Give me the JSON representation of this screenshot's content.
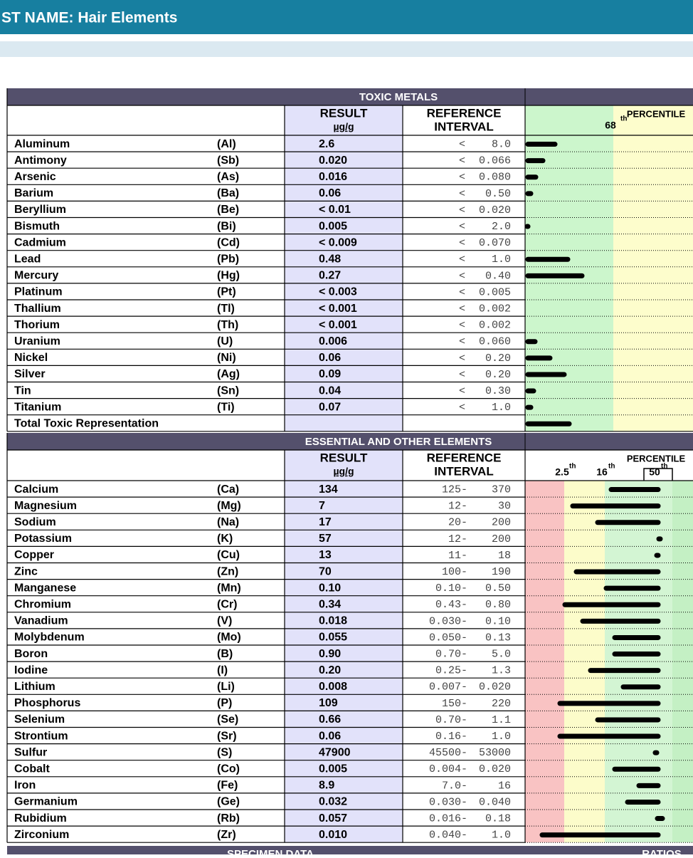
{
  "header": {
    "title": "ST NAME: Hair Elements"
  },
  "toxic": {
    "title": "TOXIC METALS",
    "result": "RESULT",
    "unit": "µg/g",
    "reference": "REFERENCE",
    "interval": "INTERVAL",
    "percentile": "PERCENTILE",
    "marker": "68",
    "marker_sup": "th",
    "rows": [
      [
        "Aluminum",
        "(Al)",
        "2.6",
        [
          "<",
          "8.0"
        ]
      ],
      [
        "Antimony",
        "(Sb)",
        "0.020",
        [
          "<",
          "0.066"
        ]
      ],
      [
        "Arsenic",
        "(As)",
        "0.016",
        [
          "<",
          "0.080"
        ]
      ],
      [
        "Barium",
        "(Ba)",
        "0.06",
        [
          "<",
          "0.50"
        ]
      ],
      [
        "Beryllium",
        "(Be)",
        "< 0.01",
        [
          "<",
          "0.020"
        ]
      ],
      [
        "Bismuth",
        "(Bi)",
        "0.005",
        [
          "<",
          "2.0"
        ]
      ],
      [
        "Cadmium",
        "(Cd)",
        "< 0.009",
        [
          "<",
          "0.070"
        ]
      ],
      [
        "Lead",
        "(Pb)",
        "0.48",
        [
          "<",
          "1.0"
        ]
      ],
      [
        "Mercury",
        "(Hg)",
        "0.27",
        [
          "<",
          "0.40"
        ]
      ],
      [
        "Platinum",
        "(Pt)",
        "< 0.003",
        [
          "<",
          "0.005"
        ]
      ],
      [
        "Thallium",
        "(Tl)",
        "< 0.001",
        [
          "<",
          "0.002"
        ]
      ],
      [
        "Thorium",
        "(Th)",
        "< 0.001",
        [
          "<",
          "0.002"
        ]
      ],
      [
        "Uranium",
        "(U)",
        "0.006",
        [
          "<",
          "0.060"
        ]
      ],
      [
        "Nickel",
        "(Ni)",
        "0.06",
        [
          "<",
          "0.20"
        ]
      ],
      [
        "Silver",
        "(Ag)",
        "0.09",
        [
          "<",
          "0.20"
        ]
      ],
      [
        "Tin",
        "(Sn)",
        "0.04",
        [
          "<",
          "0.30"
        ]
      ],
      [
        "Titanium",
        "(Ti)",
        "0.07",
        [
          "<",
          "1.0"
        ]
      ]
    ],
    "total": "Total Toxic Representation"
  },
  "essential": {
    "title": "ESSENTIAL AND OTHER ELEMENTS",
    "result": "RESULT",
    "unit": "µg/g",
    "reference": "REFERENCE",
    "interval": "INTERVAL",
    "percentile": "PERCENTILE",
    "markers": [
      [
        "2.5",
        "th"
      ],
      [
        "16",
        "th"
      ],
      [
        "50",
        "th"
      ]
    ],
    "rows": [
      [
        "Calcium",
        "(Ca)",
        "134",
        [
          "125-",
          "370"
        ]
      ],
      [
        "Magnesium",
        "(Mg)",
        "7",
        [
          "12-",
          "30"
        ]
      ],
      [
        "Sodium",
        "(Na)",
        "17",
        [
          "20-",
          "200"
        ]
      ],
      [
        "Potassium",
        "(K)",
        "57",
        [
          "12-",
          "200"
        ]
      ],
      [
        "Copper",
        "(Cu)",
        "13",
        [
          "11-",
          "18"
        ]
      ],
      [
        "Zinc",
        "(Zn)",
        "70",
        [
          "100-",
          "190"
        ]
      ],
      [
        "Manganese",
        "(Mn)",
        "0.10",
        [
          "0.10-",
          "0.50"
        ]
      ],
      [
        "Chromium",
        "(Cr)",
        "0.34",
        [
          "0.43-",
          "0.80"
        ]
      ],
      [
        "Vanadium",
        "(V)",
        "0.018",
        [
          "0.030-",
          "0.10"
        ]
      ],
      [
        "Molybdenum",
        "(Mo)",
        "0.055",
        [
          "0.050-",
          "0.13"
        ]
      ],
      [
        "Boron",
        "(B)",
        "0.90",
        [
          "0.70-",
          "5.0"
        ]
      ],
      [
        "Iodine",
        "(I)",
        "0.20",
        [
          "0.25-",
          "1.3"
        ]
      ],
      [
        "Lithium",
        "(Li)",
        "0.008",
        [
          "0.007-",
          "0.020"
        ]
      ],
      [
        "Phosphorus",
        "(P)",
        "109",
        [
          "150-",
          "220"
        ]
      ],
      [
        "Selenium",
        "(Se)",
        "0.66",
        [
          "0.70-",
          "1.1"
        ]
      ],
      [
        "Strontium",
        "(Sr)",
        "0.06",
        [
          "0.16-",
          "1.0"
        ]
      ],
      [
        "Sulfur",
        "(S)",
        "47900",
        [
          "45500-",
          "53000"
        ]
      ],
      [
        "Cobalt",
        "(Co)",
        "0.005",
        [
          "0.004-",
          "0.020"
        ]
      ],
      [
        "Iron",
        "(Fe)",
        "8.9",
        [
          "7.0-",
          "16"
        ]
      ],
      [
        "Germanium",
        "(Ge)",
        "0.032",
        [
          "0.030-",
          "0.040"
        ]
      ],
      [
        "Rubidium",
        "(Rb)",
        "0.057",
        [
          "0.016-",
          "0.18"
        ]
      ],
      [
        "Zirconium",
        "(Zr)",
        "0.010",
        [
          "0.040-",
          "1.0"
        ]
      ]
    ]
  },
  "footer": {
    "left": "SPECIMEN DATA",
    "right": "RATIOS"
  }
}
